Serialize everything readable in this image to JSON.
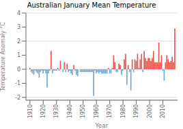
{
  "chart_data": {
    "type": "bar",
    "title": "Australian January Mean Temperature",
    "xlabel": "Year",
    "ylabel": "Temperature Anomaly °C",
    "x": [
      1910,
      1911,
      1912,
      1913,
      1914,
      1915,
      1916,
      1917,
      1918,
      1919,
      1920,
      1921,
      1922,
      1923,
      1924,
      1925,
      1926,
      1927,
      1928,
      1929,
      1930,
      1931,
      1932,
      1933,
      1934,
      1935,
      1936,
      1937,
      1938,
      1939,
      1940,
      1941,
      1942,
      1943,
      1944,
      1945,
      1946,
      1947,
      1948,
      1949,
      1950,
      1951,
      1952,
      1953,
      1954,
      1955,
      1956,
      1957,
      1958,
      1959,
      1960,
      1961,
      1962,
      1963,
      1964,
      1965,
      1966,
      1967,
      1968,
      1969,
      1970,
      1971,
      1972,
      1973,
      1974,
      1975,
      1976,
      1977,
      1978,
      1979,
      1980,
      1981,
      1982,
      1983,
      1984,
      1985,
      1986,
      1987,
      1988,
      1989,
      1990,
      1991,
      1992,
      1993,
      1994,
      1995,
      1996,
      1997,
      1998,
      1999,
      2000,
      2001,
      2002,
      2003,
      2004,
      2005,
      2006,
      2007,
      2008,
      2009,
      2010,
      2011,
      2012,
      2013,
      2014,
      2015,
      2016,
      2017,
      2018,
      2019
    ],
    "values": [
      0.1,
      -0.2,
      -0.3,
      -0.4,
      -0.1,
      -0.2,
      -0.3,
      -0.6,
      -0.2,
      -0.1,
      -0.3,
      -0.1,
      -0.3,
      -1.3,
      -0.3,
      -0.1,
      1.3,
      -0.3,
      -0.1,
      -0.1,
      -0.1,
      0.1,
      -0.1,
      0.6,
      0.0,
      -0.2,
      0.5,
      -0.2,
      0.4,
      -0.2,
      -0.1,
      -0.3,
      -0.4,
      0.3,
      -0.1,
      -0.4,
      -0.5,
      0.0,
      -0.2,
      -0.2,
      -0.2,
      -0.2,
      -0.2,
      -0.2,
      -0.2,
      -0.2,
      -0.2,
      -0.2,
      -1.9,
      -0.1,
      -0.3,
      -0.2,
      -0.3,
      -0.2,
      -0.3,
      -0.3,
      -0.3,
      -0.3,
      -0.3,
      0.1,
      -0.3,
      -0.3,
      0.1,
      1.0,
      0.5,
      -0.2,
      -0.2,
      0.4,
      0.3,
      -0.4,
      -0.1,
      0.7,
      1.1,
      -1.1,
      0.3,
      -0.2,
      -1.5,
      0.7,
      -0.2,
      0.7,
      0.6,
      1.1,
      0.1,
      0.7,
      1.1,
      -0.2,
      1.3,
      0.8,
      0.6,
      0.8,
      0.8,
      0.6,
      0.8,
      1.3,
      0.5,
      0.5,
      0.5,
      1.9,
      0.5,
      1.0,
      -0.1,
      -0.8,
      0.5,
      1.0,
      0.7,
      0.5,
      0.6,
      0.9,
      0.5,
      2.9
    ],
    "colors": [
      "#e8534a",
      "#6fa8d5",
      "#6fa8d5",
      "#6fa8d5",
      "#6fa8d5",
      "#6fa8d5",
      "#6fa8d5",
      "#6fa8d5",
      "#6fa8d5",
      "#6fa8d5",
      "#6fa8d5",
      "#6fa8d5",
      "#6fa8d5",
      "#6fa8d5",
      "#6fa8d5",
      "#6fa8d5",
      "#e8534a",
      "#6fa8d5",
      "#6fa8d5",
      "#6fa8d5",
      "#6fa8d5",
      "#e8534a",
      "#6fa8d5",
      "#e8534a",
      "#e8534a",
      "#6fa8d5",
      "#e8534a",
      "#6fa8d5",
      "#e8534a",
      "#6fa8d5",
      "#6fa8d5",
      "#6fa8d5",
      "#6fa8d5",
      "#e8534a",
      "#6fa8d5",
      "#6fa8d5",
      "#6fa8d5",
      "#e8534a",
      "#6fa8d5",
      "#6fa8d5",
      "#6fa8d5",
      "#6fa8d5",
      "#6fa8d5",
      "#6fa8d5",
      "#6fa8d5",
      "#6fa8d5",
      "#6fa8d5",
      "#6fa8d5",
      "#6fa8d5",
      "#6fa8d5",
      "#6fa8d5",
      "#6fa8d5",
      "#6fa8d5",
      "#6fa8d5",
      "#6fa8d5",
      "#6fa8d5",
      "#6fa8d5",
      "#6fa8d5",
      "#6fa8d5",
      "#e8534a",
      "#6fa8d5",
      "#6fa8d5",
      "#e8534a",
      "#e8534a",
      "#e8534a",
      "#6fa8d5",
      "#6fa8d5",
      "#e8534a",
      "#e8534a",
      "#6fa8d5",
      "#6fa8d5",
      "#e8534a",
      "#e8534a",
      "#6fa8d5",
      "#e8534a",
      "#6fa8d5",
      "#6fa8d5",
      "#e8534a",
      "#6fa8d5",
      "#e8534a",
      "#e8534a",
      "#e8534a",
      "#e8534a",
      "#e8534a",
      "#e8534a",
      "#6fa8d5",
      "#e8534a",
      "#e8534a",
      "#e8534a",
      "#e8534a",
      "#e8534a",
      "#e8534a",
      "#e8534a",
      "#e8534a",
      "#e8534a",
      "#e8534a",
      "#e8534a",
      "#e8534a",
      "#e8534a",
      "#e8534a",
      "#6fa8d5",
      "#6fa8d5",
      "#e8534a",
      "#e8534a",
      "#e8534a",
      "#e8534a",
      "#e8534a",
      "#e8534a",
      "#e8534a",
      "#e8534a"
    ],
    "xlim": [
      1907,
      2021
    ],
    "xticks": [
      1910,
      1920,
      1930,
      1940,
      1950,
      1960,
      1970,
      1980,
      1990,
      2000,
      2010
    ],
    "ylim": [
      -2.2,
      4.0
    ],
    "yticks": [
      -2,
      -1,
      0,
      1,
      2,
      3,
      4
    ],
    "grid": true
  }
}
